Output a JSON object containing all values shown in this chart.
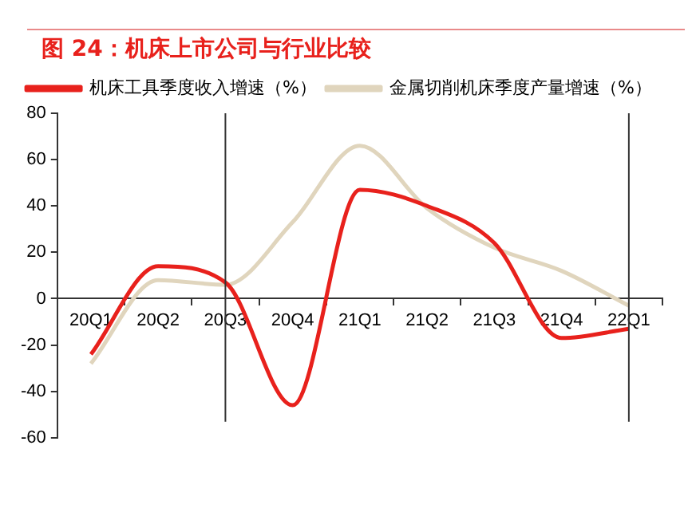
{
  "chart_data": {
    "type": "line",
    "title": "图 24：机床上市公司与行业比较",
    "categories": [
      "20Q1",
      "20Q2",
      "20Q3",
      "20Q4",
      "21Q1",
      "21Q2",
      "21Q3",
      "21Q4",
      "22Q1"
    ],
    "series": [
      {
        "name": "机床工具季度收入增速（%）",
        "color": "#e8211c",
        "values": [
          -24,
          14,
          7,
          -46,
          47,
          40,
          24,
          -17,
          -13
        ]
      },
      {
        "name": "金属切削机床季度产量增速（%）",
        "color": "#e0d5bd",
        "values": [
          -28,
          8,
          6,
          33,
          66,
          39,
          22,
          12,
          -3
        ]
      }
    ],
    "ylim": [
      -60,
      80
    ],
    "yticks": [
      -60,
      -40,
      -20,
      0,
      20,
      40,
      60,
      80
    ],
    "ref_lines": [
      {
        "axis": "x",
        "value": "20Q3",
        "color": "#333333"
      },
      {
        "axis": "x",
        "value": "22Q1",
        "color": "#333333"
      }
    ],
    "grid": false,
    "legend": "top",
    "marker": "none",
    "line_style": "solid"
  }
}
